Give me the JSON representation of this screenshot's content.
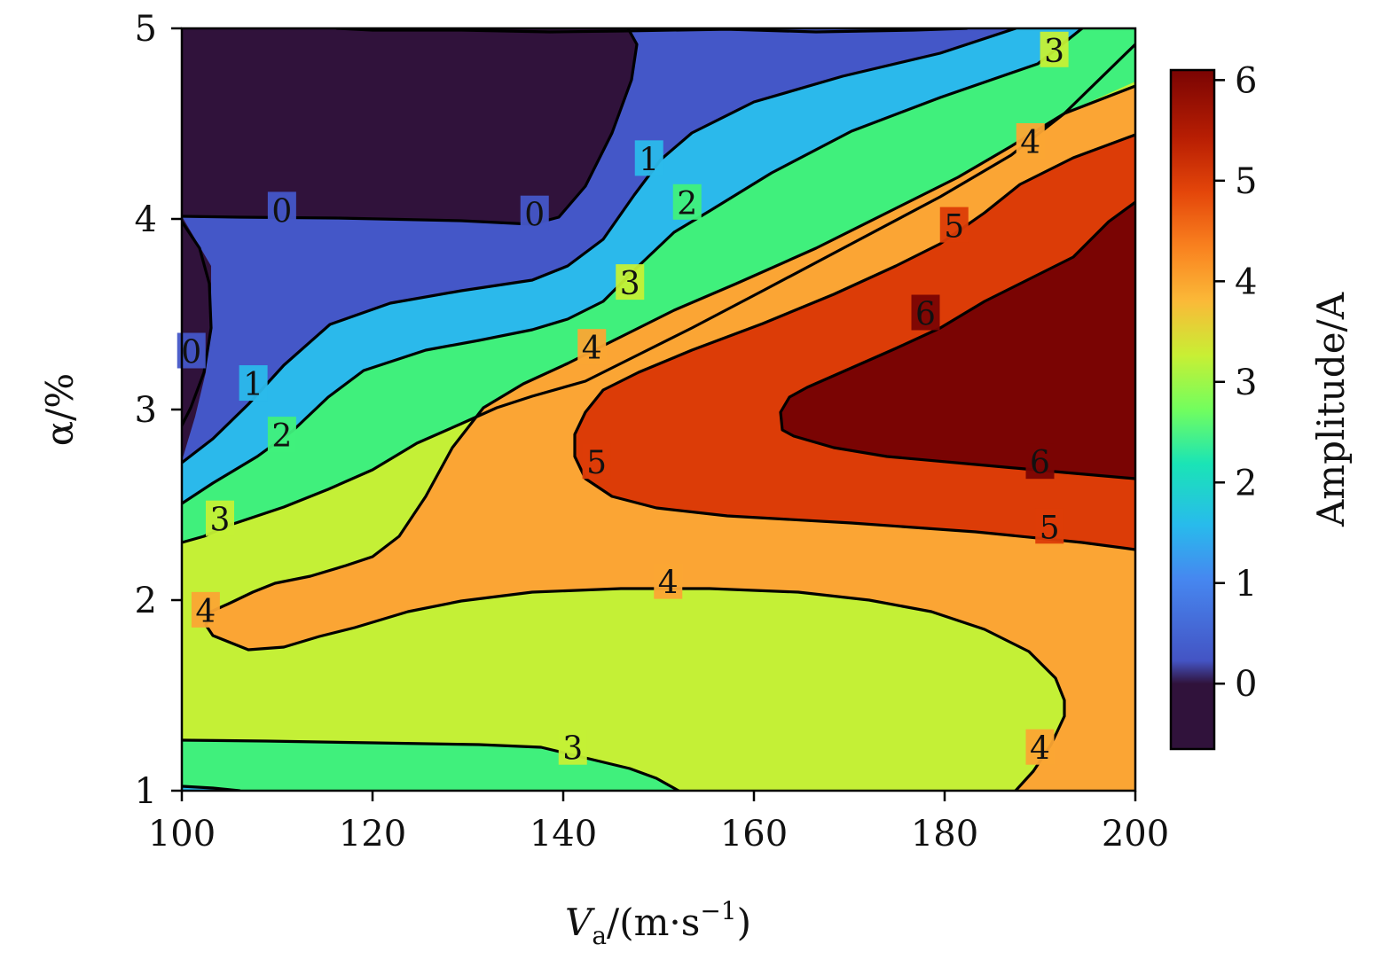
{
  "chart_data": {
    "type": "contour",
    "xlabel": {
      "main": "V",
      "sub": "a",
      "rest": "/(m·s",
      "sup": "−1",
      "close": ")"
    },
    "ylabel": "α/%",
    "xlim": [
      100,
      200
    ],
    "ylim": [
      1,
      5
    ],
    "x_ticks": [
      100,
      120,
      140,
      160,
      180,
      200
    ],
    "y_ticks": [
      1,
      2,
      3,
      4,
      5
    ],
    "colorbar": {
      "label": "Amplitude/A",
      "range": [
        -0.65,
        6.1
      ],
      "ticks": [
        0,
        1,
        2,
        3,
        4,
        5,
        6
      ],
      "colors": [
        "#30123b",
        "#4454c4",
        "#28bbec",
        "#1ae4b6",
        "#a2fc3c",
        "#fbb938",
        "#e4460a",
        "#7a0403"
      ]
    },
    "levels": [
      0,
      1,
      2,
      3,
      4,
      5,
      6
    ],
    "bands": [
      {
        "range": "<0",
        "color": "#30123b"
      },
      {
        "range": "0-1",
        "color": "#4457c8"
      },
      {
        "range": "1-2",
        "color": "#2bb9eb"
      },
      {
        "range": "2-3",
        "color": "#40f07c"
      },
      {
        "range": "3-4",
        "color": "#c4f036"
      },
      {
        "range": "4-5",
        "color": "#fba534"
      },
      {
        "range": "5-6",
        "color": "#dc3c07"
      },
      {
        "range": ">6",
        "color": "#7a0403"
      }
    ],
    "contour_labels": [
      {
        "text": "0",
        "x": 110.5,
        "y": 4.04
      },
      {
        "text": "0",
        "x": 137,
        "y": 4.02
      },
      {
        "text": "0",
        "x": 101,
        "y": 3.3
      },
      {
        "text": "1",
        "x": 149,
        "y": 4.31
      },
      {
        "text": "1",
        "x": 107.5,
        "y": 3.13
      },
      {
        "text": "2",
        "x": 153,
        "y": 4.08
      },
      {
        "text": "2",
        "x": 110.5,
        "y": 2.86
      },
      {
        "text": "3",
        "x": 147,
        "y": 3.66
      },
      {
        "text": "3",
        "x": 104,
        "y": 2.42
      },
      {
        "text": "3",
        "x": 191.5,
        "y": 4.88
      },
      {
        "text": "3",
        "x": 141,
        "y": 1.22
      },
      {
        "text": "4",
        "x": 143,
        "y": 3.32
      },
      {
        "text": "4",
        "x": 102.5,
        "y": 1.94
      },
      {
        "text": "4",
        "x": 151,
        "y": 2.09
      },
      {
        "text": "4",
        "x": 189,
        "y": 4.4
      },
      {
        "text": "4",
        "x": 190,
        "y": 1.22
      },
      {
        "text": "5",
        "x": 143.5,
        "y": 2.72
      },
      {
        "text": "5",
        "x": 181,
        "y": 3.96
      },
      {
        "text": "5",
        "x": 191,
        "y": 2.38
      },
      {
        "text": "6",
        "x": 178,
        "y": 3.5
      },
      {
        "text": "6",
        "x": 190,
        "y": 2.72
      }
    ]
  }
}
